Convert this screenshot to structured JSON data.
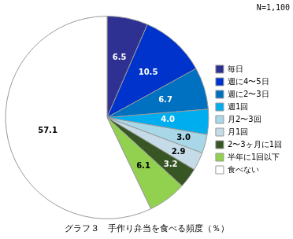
{
  "chart_data": {
    "type": "pie",
    "title": "グラフ３　手作り弁当を食べる頻度（％）",
    "annotations": [
      "N=1,100"
    ],
    "categories": [
      "毎日",
      "週に4〜5日",
      "週に2〜3日",
      "週1回",
      "月2〜3回",
      "月1回",
      "2〜3ヶ月に1回",
      "半年に1回以下",
      "食べない"
    ],
    "values": [
      6.5,
      10.5,
      6.7,
      4.0,
      3.0,
      2.9,
      3.2,
      6.1,
      57.1
    ],
    "value_labels": [
      "6.5",
      "10.5",
      "6.7",
      "4.0",
      "3.0",
      "2.9",
      "3.2",
      "6.1",
      "57.1"
    ],
    "colors": [
      "#2E3192",
      "#0033CC",
      "#0070C0",
      "#00AEEF",
      "#A8D8E8",
      "#C5DCE8",
      "#375623",
      "#92D050",
      "#FFFFFF"
    ],
    "data_labels": true,
    "legend": "right"
  }
}
